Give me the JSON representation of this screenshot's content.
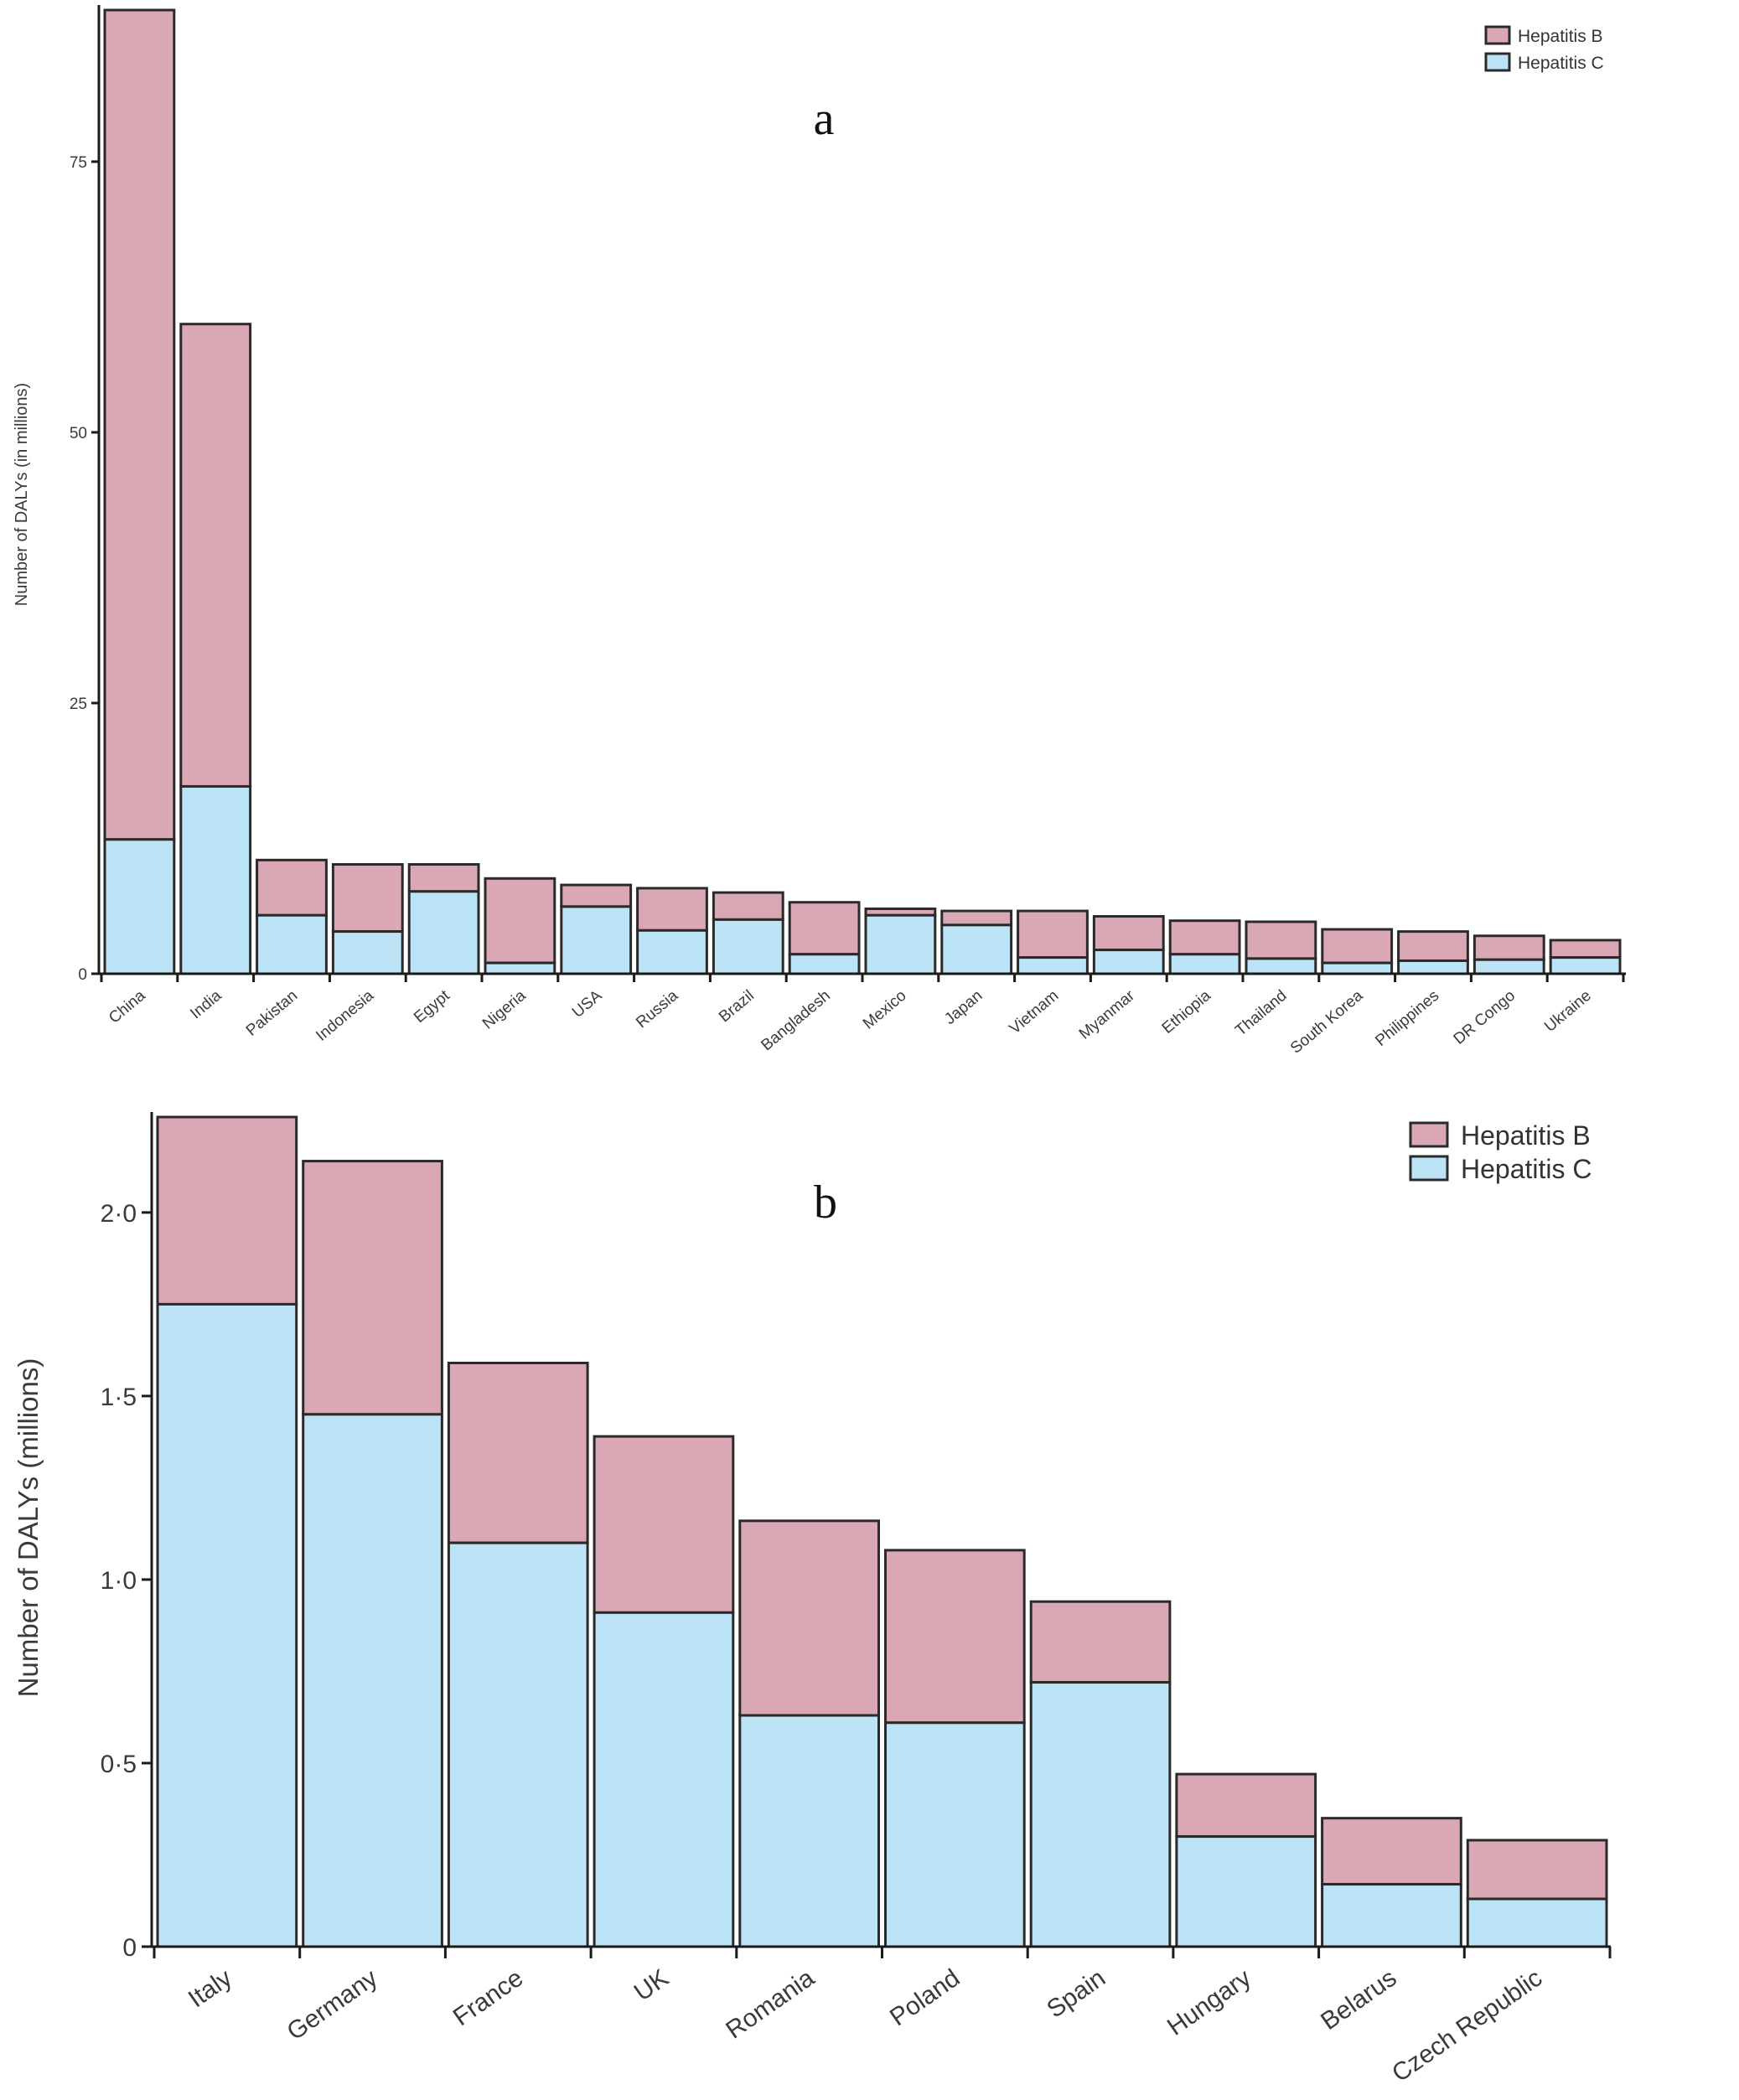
{
  "colors": {
    "hepatitis_b": "#d9a8b4",
    "hepatitis_c": "#bde3f6",
    "outline": "#2a2a2a"
  },
  "chart_data": [
    {
      "id": "a",
      "type": "bar",
      "stacked": true,
      "panel_label": "a",
      "title": "",
      "xlabel": "",
      "ylabel": "Number of DALYs (in millions)",
      "ylim": [
        0,
        89
      ],
      "yticks": [
        0,
        25,
        50,
        75
      ],
      "ytick_labels": [
        "0",
        "25",
        "50",
        "75"
      ],
      "legend_position": "top-right",
      "categories": [
        "China",
        "India",
        "Pakistan",
        "Indonesia",
        "Egypt",
        "Nigeria",
        "USA",
        "Russia",
        "Brazil",
        "Bangladesh",
        "Mexico",
        "Japan",
        "Vietnam",
        "Myanmar",
        "Ethiopia",
        "Thailand",
        "South Korea",
        "Philippines",
        "DR Congo",
        "Ukraine"
      ],
      "series": [
        {
          "name": "Hepatitis C",
          "color_key": "hepatitis_c",
          "values": [
            12.4,
            17.3,
            5.4,
            3.9,
            7.6,
            1.0,
            6.2,
            4.0,
            5.0,
            1.8,
            5.4,
            4.5,
            1.5,
            2.2,
            1.8,
            1.4,
            1.0,
            1.2,
            1.3,
            1.5
          ]
        },
        {
          "name": "Hepatitis B",
          "color_key": "hepatitis_b",
          "values": [
            76.6,
            42.7,
            5.1,
            6.2,
            2.5,
            7.8,
            2.0,
            3.9,
            2.5,
            4.8,
            0.6,
            1.3,
            4.3,
            3.1,
            3.1,
            3.4,
            3.1,
            2.7,
            2.2,
            1.6
          ]
        }
      ]
    },
    {
      "id": "b",
      "type": "bar",
      "stacked": true,
      "panel_label": "b",
      "title": "",
      "xlabel": "",
      "ylabel": "Number of DALYs (millions)",
      "ylim": [
        0,
        2.26
      ],
      "yticks": [
        0,
        0.5,
        1.0,
        1.5,
        2.0
      ],
      "ytick_labels": [
        "0",
        "0·5",
        "1·0",
        "1·5",
        "2·0"
      ],
      "legend_position": "top-right",
      "categories": [
        "Italy",
        "Germany",
        "France",
        "UK",
        "Romania",
        "Poland",
        "Spain",
        "Hungary",
        "Belarus",
        "Czech Republic"
      ],
      "series": [
        {
          "name": "Hepatitis C",
          "color_key": "hepatitis_c",
          "values": [
            1.75,
            1.45,
            1.1,
            0.91,
            0.63,
            0.61,
            0.72,
            0.3,
            0.17,
            0.13
          ]
        },
        {
          "name": "Hepatitis B",
          "color_key": "hepatitis_b",
          "values": [
            0.51,
            0.69,
            0.49,
            0.48,
            0.53,
            0.47,
            0.22,
            0.17,
            0.18,
            0.16
          ]
        }
      ]
    }
  ]
}
